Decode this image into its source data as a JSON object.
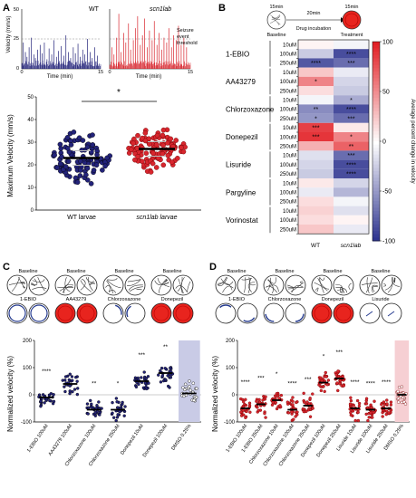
{
  "panels": {
    "a": "A",
    "b": "B",
    "c": "C",
    "d": "D"
  },
  "colors": {
    "wt": "#23237a",
    "mut": "#d8262e",
    "red": "#e8241e",
    "blue": "#243a8f",
    "dmso_c": "#c9cbe6",
    "dmso_d": "#f6cfd3"
  },
  "chart_data": [
    {
      "id": "A_traces",
      "type": "line",
      "panels": [
        {
          "label": "WT",
          "series_color": "#23237a"
        },
        {
          "label": "scn1lab",
          "series_color": "#d8262e"
        }
      ],
      "ylabel": "Velocity (mm/s)",
      "xlabel": "Time (min)",
      "yticks": [
        "50",
        "25",
        "0"
      ],
      "xticks": [
        "0",
        "15"
      ],
      "threshold_label": [
        "Seizure",
        "event",
        "threshold"
      ],
      "wt_spikes": [
        [
          0.3,
          22
        ],
        [
          0.7,
          14
        ],
        [
          1.0,
          10
        ],
        [
          1.4,
          18
        ],
        [
          1.8,
          26
        ],
        [
          2.3,
          12
        ],
        [
          2.6,
          9
        ],
        [
          3.0,
          16
        ],
        [
          3.5,
          20
        ],
        [
          3.9,
          13
        ],
        [
          4.3,
          22
        ],
        [
          4.8,
          8
        ],
        [
          5.2,
          17
        ],
        [
          5.7,
          12
        ],
        [
          6.1,
          24
        ],
        [
          6.6,
          10
        ],
        [
          7.0,
          15
        ],
        [
          7.5,
          19
        ],
        [
          8.0,
          11
        ],
        [
          8.4,
          28
        ],
        [
          8.9,
          14
        ],
        [
          9.3,
          9
        ],
        [
          9.8,
          18
        ],
        [
          10.2,
          13
        ],
        [
          10.7,
          21
        ],
        [
          11.1,
          10
        ],
        [
          11.6,
          16
        ],
        [
          12.0,
          12
        ],
        [
          12.5,
          25
        ],
        [
          13.0,
          14
        ],
        [
          13.4,
          9
        ],
        [
          13.9,
          18
        ],
        [
          14.4,
          11
        ]
      ],
      "mut_spikes": [
        [
          0.4,
          18
        ],
        [
          0.8,
          12
        ],
        [
          1.3,
          26
        ],
        [
          1.7,
          46
        ],
        [
          2.1,
          14
        ],
        [
          2.6,
          30
        ],
        [
          3.0,
          22
        ],
        [
          3.5,
          38
        ],
        [
          3.9,
          16
        ],
        [
          4.4,
          24
        ],
        [
          4.8,
          34
        ],
        [
          5.2,
          44
        ],
        [
          5.7,
          20
        ],
        [
          6.1,
          28
        ],
        [
          6.5,
          42
        ],
        [
          7.0,
          18
        ],
        [
          7.4,
          32
        ],
        [
          7.9,
          24
        ],
        [
          8.3,
          40
        ],
        [
          8.8,
          20
        ],
        [
          9.2,
          30
        ],
        [
          9.7,
          16
        ],
        [
          10.1,
          26
        ],
        [
          10.6,
          22
        ],
        [
          11.0,
          34
        ],
        [
          11.5,
          18
        ],
        [
          11.9,
          28
        ],
        [
          12.4,
          24
        ],
        [
          12.8,
          36
        ],
        [
          13.3,
          20
        ],
        [
          13.8,
          26
        ],
        [
          14.3,
          18
        ]
      ]
    },
    {
      "id": "A_scatter",
      "type": "scatter",
      "categories": [
        "WT larvae",
        "scn1lab larvae"
      ],
      "ylabel": "Maximum Velocity (mm/s)",
      "ylim": [
        0,
        50
      ],
      "yticks": [
        "0",
        "10",
        "20",
        "30",
        "40",
        "50"
      ],
      "means": [
        23,
        27
      ],
      "significance": "*"
    },
    {
      "id": "B_heatmap",
      "type": "heatmap",
      "columns": [
        "WT",
        "scn1lab"
      ],
      "rows": [
        {
          "drug": "1-EBIO",
          "dose": "10uM",
          "values": [
            5,
            -5
          ],
          "sig": [
            "",
            ""
          ]
        },
        {
          "drug": "1-EBIO",
          "dose": "100uM",
          "values": [
            -25,
            -85
          ],
          "sig": [
            "",
            "****"
          ]
        },
        {
          "drug": "1-EBIO",
          "dose": "250uM",
          "values": [
            -80,
            -70
          ],
          "sig": [
            "****",
            "***"
          ]
        },
        {
          "drug": "AA43279",
          "dose": "10uM",
          "values": [
            25,
            -10
          ],
          "sig": [
            "",
            ""
          ]
        },
        {
          "drug": "AA43279",
          "dose": "100uM",
          "values": [
            55,
            -20
          ],
          "sig": [
            "*",
            ""
          ]
        },
        {
          "drug": "AA43279",
          "dose": "250uM",
          "values": [
            15,
            -25
          ],
          "sig": [
            "",
            ""
          ]
        },
        {
          "drug": "Chlorzoxazone",
          "dose": "10uM",
          "values": [
            -5,
            -40
          ],
          "sig": [
            "",
            "*"
          ]
        },
        {
          "drug": "Chlorzoxazone",
          "dose": "100uM",
          "values": [
            -55,
            -85
          ],
          "sig": [
            "**",
            "****"
          ]
        },
        {
          "drug": "Chlorzoxazone",
          "dose": "250uM",
          "values": [
            -50,
            -70
          ],
          "sig": [
            "*",
            "***"
          ]
        },
        {
          "drug": "Donepezil",
          "dose": "10uM",
          "values": [
            85,
            10
          ],
          "sig": [
            "***",
            ""
          ]
        },
        {
          "drug": "Donepezil",
          "dose": "100uM",
          "values": [
            90,
            55
          ],
          "sig": [
            "***",
            "*"
          ]
        },
        {
          "drug": "Donepezil",
          "dose": "250uM",
          "values": [
            35,
            70
          ],
          "sig": [
            "",
            "**"
          ]
        },
        {
          "drug": "Lisuride",
          "dose": "10uM",
          "values": [
            -15,
            -70
          ],
          "sig": [
            "",
            "***"
          ]
        },
        {
          "drug": "Lisuride",
          "dose": "100uM",
          "values": [
            -20,
            -85
          ],
          "sig": [
            "",
            "****"
          ]
        },
        {
          "drug": "Lisuride",
          "dose": "250uM",
          "values": [
            -25,
            -85
          ],
          "sig": [
            "",
            "****"
          ]
        },
        {
          "drug": "Pargyline",
          "dose": "10uM",
          "values": [
            10,
            -20
          ],
          "sig": [
            "",
            ""
          ]
        },
        {
          "drug": "Pargyline",
          "dose": "100uM",
          "values": [
            -10,
            -35
          ],
          "sig": [
            "",
            ""
          ]
        },
        {
          "drug": "Pargyline",
          "dose": "250uM",
          "values": [
            15,
            -5
          ],
          "sig": [
            "",
            ""
          ]
        },
        {
          "drug": "Vorinostat",
          "dose": "10uM",
          "values": [
            20,
            -15
          ],
          "sig": [
            "",
            ""
          ]
        },
        {
          "drug": "Vorinostat",
          "dose": "100uM",
          "values": [
            15,
            5
          ],
          "sig": [
            "",
            ""
          ]
        },
        {
          "drug": "Vorinostat",
          "dose": "250uM",
          "values": [
            25,
            -10
          ],
          "sig": [
            "",
            ""
          ]
        }
      ],
      "colorbar": {
        "label": "Average percent change in velocity",
        "ticks": [
          "100",
          "50",
          "0",
          "-50",
          "-100"
        ],
        "range": [
          -100,
          100
        ]
      },
      "schematic": {
        "t1": "15min",
        "t2": "20min",
        "t3": "15min",
        "baseline": "Baseline",
        "drug": "Drug incubation",
        "treatment": "Treatment"
      }
    },
    {
      "id": "C_scatter",
      "type": "scatter",
      "ylabel": "Normalized velocity (%)",
      "ylim": [
        -100,
        200
      ],
      "yticks": [
        "-100",
        "0",
        "100",
        "200"
      ],
      "categories": [
        "1-EBIO 100uM",
        "AA43279 100uM",
        "Chlorzoxazone 100uM",
        "Chlorzoxazone 250uM",
        "Donepezil 10uM",
        "Donepezil 100uM",
        "DMSO 0.25%"
      ],
      "means": [
        -10,
        40,
        -55,
        -55,
        50,
        80,
        5
      ],
      "significance": [
        "****",
        "",
        "**",
        "*",
        "***",
        "**",
        ""
      ],
      "track_labels_top": [
        "Baseline",
        "Baseline",
        "Baseline",
        "Baseline"
      ],
      "track_labels_bottom": [
        "1-EBIO",
        "AA43279",
        "Chlorzoxazone",
        "Donepezil"
      ]
    },
    {
      "id": "D_scatter",
      "type": "scatter",
      "ylabel": "Normalized velocity (%)",
      "ylim": [
        -100,
        200
      ],
      "yticks": [
        "-100",
        "0",
        "100",
        "200"
      ],
      "categories": [
        "1-EBIO 100uM",
        "1-EBIO 250uM",
        "Chlorzoxazone 10uM",
        "Chlorzoxazone 100uM",
        "Chlorzoxazone 250uM",
        "Donepezil 100uM",
        "Donepezil 250uM",
        "Lisuride 10uM",
        "Lisuride 100uM",
        "Lisuride 250uM",
        "DMSO 0.25%"
      ],
      "means": [
        -50,
        -35,
        -20,
        -55,
        -40,
        45,
        60,
        -50,
        -55,
        -50,
        0
      ],
      "significance": [
        "****",
        "***",
        "*",
        "****",
        "***",
        "*",
        "***",
        "****",
        "****",
        "****",
        ""
      ],
      "track_labels_top": [
        "Baseline",
        "Baseline",
        "Baseline",
        "Baseline"
      ],
      "track_labels_bottom": [
        "1-EBIO",
        "Chlorzoxazone",
        "Donepezil",
        "Lisuride"
      ]
    }
  ]
}
